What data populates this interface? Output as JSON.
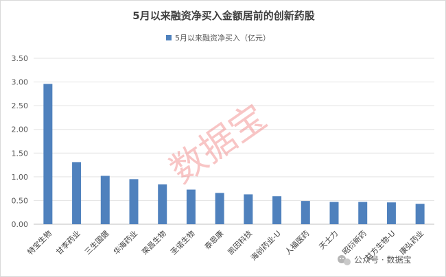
{
  "chart_data": {
    "type": "bar",
    "title": "5月以来融资净买入金额居前的创新药股",
    "xlabel": "",
    "ylabel": "",
    "legend": {
      "label": "5月以来融资净买入（亿元）",
      "placement": "top-center"
    },
    "categories": [
      "特宝生物",
      "甘李药业",
      "三生国健",
      "华海药业",
      "荣昌生物",
      "圣诺生物",
      "泰恩康",
      "凯因科技",
      "海创药业-U",
      "人福医药",
      "天士力",
      "昭衍新药",
      "益方生物-U",
      "康弘药业"
    ],
    "series": [
      {
        "name": "5月以来融资净买入（亿元）",
        "color": "#4f81bd",
        "values": [
          2.96,
          1.31,
          1.02,
          0.95,
          0.84,
          0.73,
          0.66,
          0.63,
          0.59,
          0.49,
          0.47,
          0.47,
          0.46,
          0.43
        ]
      }
    ],
    "ylim": [
      0,
      3.5
    ],
    "yticks": [
      "0.00",
      "0.50",
      "1.00",
      "1.50",
      "2.00",
      "2.50",
      "3.00",
      "3.50"
    ],
    "grid": true
  },
  "watermark": {
    "text": "数据宝",
    "color": "#f08080"
  },
  "footer": {
    "source_text": "公众号 · 数据宝",
    "icon": "wechat-icon"
  }
}
